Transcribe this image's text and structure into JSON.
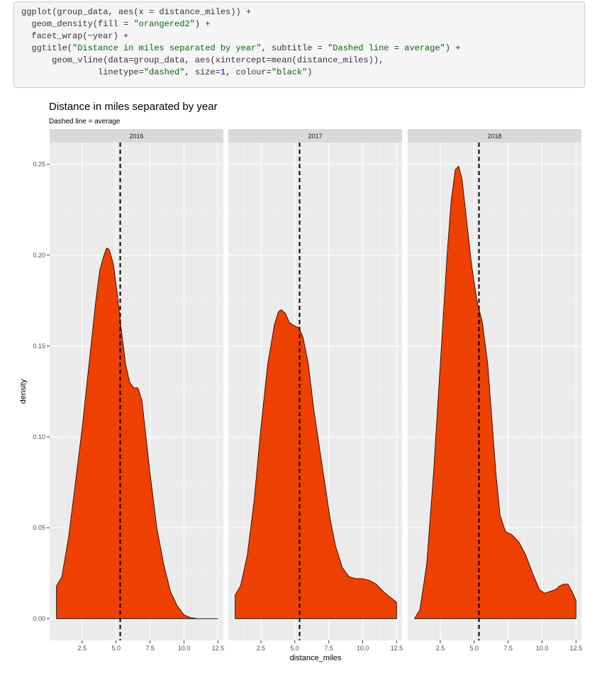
{
  "code": {
    "lines": [
      [
        {
          "t": "ggplot(group_data, aes(x = distance_miles)) +"
        }
      ],
      [
        {
          "t": "  geom_density(fill = "
        },
        {
          "t": "\"orangered2\"",
          "c": "str"
        },
        {
          "t": ") +"
        }
      ],
      [
        {
          "t": "  facet_wrap(~year) +"
        }
      ],
      [
        {
          "t": "  ggtitle("
        },
        {
          "t": "\"Distance in miles separated by year\"",
          "c": "str"
        },
        {
          "t": ", subtitle = "
        },
        {
          "t": "\"Dashed line = average\"",
          "c": "str"
        },
        {
          "t": ") +"
        }
      ],
      [
        {
          "t": "      geom_vline(data=group_data, aes(xintercept=mean(distance_miles)),"
        }
      ],
      [
        {
          "t": "               linetype="
        },
        {
          "t": "\"dashed\"",
          "c": "str"
        },
        {
          "t": ", size="
        },
        {
          "t": "1",
          "c": "num"
        },
        {
          "t": ", colour="
        },
        {
          "t": "\"black\"",
          "c": "str"
        },
        {
          "t": ")"
        }
      ]
    ]
  },
  "chart_data": {
    "type": "area",
    "title": "Distance in miles separated by year",
    "subtitle": "Dashed line = average",
    "xlabel": "distance_miles",
    "ylabel": "density",
    "xlim": [
      0.1,
      12.9
    ],
    "ylim": [
      -0.012,
      0.262
    ],
    "xticks": [
      2.5,
      5.0,
      7.5,
      10.0,
      12.5
    ],
    "xtick_labels": [
      "2.5",
      "5.0",
      "7.5",
      "10.0",
      "12.5"
    ],
    "yticks": [
      0.0,
      0.05,
      0.1,
      0.15,
      0.2,
      0.25
    ],
    "ytick_labels": [
      "0.00",
      "0.05",
      "0.10",
      "0.15",
      "0.20",
      "0.25"
    ],
    "fill_color": "#ee4000",
    "panel_bg": "#ebebeb",
    "strip_bg": "#d9d9d9",
    "mean_line_style": "dashed",
    "facets": [
      {
        "name": "2016",
        "mean": 5.3,
        "x": [
          0.6,
          1.0,
          1.5,
          2.0,
          2.5,
          3.0,
          3.5,
          3.8,
          4.1,
          4.3,
          4.5,
          4.8,
          5.1,
          5.4,
          5.7,
          6.0,
          6.3,
          6.6,
          6.9,
          7.2,
          7.5,
          8.0,
          8.5,
          9.0,
          9.5,
          10.0,
          10.5,
          11.0,
          12.5
        ],
        "y": [
          0.018,
          0.023,
          0.045,
          0.075,
          0.105,
          0.14,
          0.175,
          0.192,
          0.2,
          0.204,
          0.203,
          0.195,
          0.178,
          0.158,
          0.14,
          0.13,
          0.127,
          0.127,
          0.12,
          0.1,
          0.08,
          0.05,
          0.03,
          0.015,
          0.007,
          0.002,
          0.0005,
          0.0,
          0.0
        ]
      },
      {
        "name": "2017",
        "mean": 5.35,
        "x": [
          0.6,
          1.0,
          1.5,
          2.0,
          2.5,
          3.0,
          3.5,
          3.8,
          4.0,
          4.3,
          4.6,
          5.0,
          5.3,
          5.6,
          6.0,
          6.4,
          6.8,
          7.2,
          7.6,
          8.0,
          8.5,
          9.0,
          9.5,
          10.0,
          10.5,
          11.0,
          11.5,
          12.0,
          12.5
        ],
        "y": [
          0.013,
          0.018,
          0.035,
          0.065,
          0.105,
          0.14,
          0.162,
          0.169,
          0.17,
          0.168,
          0.163,
          0.161,
          0.16,
          0.155,
          0.14,
          0.115,
          0.095,
          0.075,
          0.055,
          0.04,
          0.028,
          0.023,
          0.022,
          0.022,
          0.021,
          0.019,
          0.015,
          0.012,
          0.009
        ]
      },
      {
        "name": "2018",
        "mean": 5.35,
        "x": [
          0.6,
          1.0,
          1.5,
          2.0,
          2.5,
          3.0,
          3.3,
          3.6,
          3.85,
          4.1,
          4.4,
          4.8,
          5.2,
          5.6,
          6.0,
          6.3,
          6.6,
          6.9,
          7.3,
          7.8,
          8.3,
          8.8,
          9.3,
          9.8,
          10.2,
          10.6,
          11.0,
          11.3,
          11.6,
          11.9,
          12.2,
          12.5
        ],
        "y": [
          0.0,
          0.005,
          0.03,
          0.08,
          0.14,
          0.2,
          0.23,
          0.247,
          0.249,
          0.242,
          0.222,
          0.195,
          0.175,
          0.163,
          0.14,
          0.11,
          0.08,
          0.057,
          0.048,
          0.046,
          0.042,
          0.035,
          0.025,
          0.016,
          0.014,
          0.015,
          0.016,
          0.018,
          0.019,
          0.019,
          0.015,
          0.01
        ]
      }
    ]
  }
}
